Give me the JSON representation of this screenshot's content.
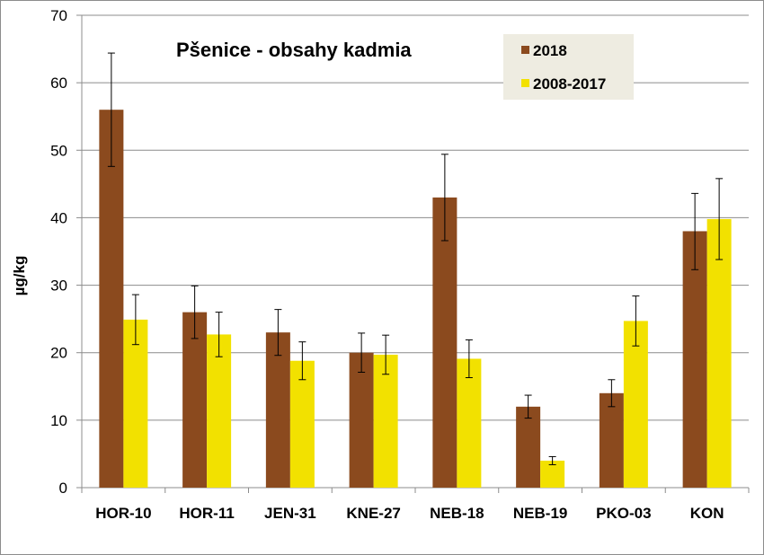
{
  "chart_data": {
    "type": "bar",
    "title": "Pšenice - obsahy kadmia",
    "xlabel": "",
    "ylabel": "µg/kg",
    "ylim": [
      0,
      70
    ],
    "yticks": [
      0,
      10,
      20,
      30,
      40,
      50,
      60,
      70
    ],
    "grid": true,
    "legend_position": "top-right",
    "categories": [
      "HOR-10",
      "HOR-11",
      "JEN-31",
      "KNE-27",
      "NEB-18",
      "NEB-19",
      "PKO-03",
      "KON"
    ],
    "series": [
      {
        "name": "2018",
        "color": "#8B4A1E",
        "values": [
          56,
          26,
          23,
          20,
          43,
          12,
          14,
          38
        ],
        "error_low": [
          47.6,
          22.1,
          19.6,
          17.1,
          36.6,
          10.3,
          12,
          32.3
        ],
        "error_high": [
          64.4,
          29.9,
          26.4,
          22.9,
          49.4,
          13.7,
          16,
          43.6
        ]
      },
      {
        "name": "2008-2017",
        "color": "#F2E100",
        "values": [
          24.9,
          22.7,
          18.8,
          19.7,
          19.1,
          4,
          24.7,
          39.8
        ],
        "error_low": [
          21.2,
          19.4,
          16,
          16.8,
          16.3,
          3.4,
          21,
          33.8
        ],
        "error_high": [
          28.6,
          26,
          21.6,
          22.6,
          21.9,
          4.6,
          28.4,
          45.8
        ]
      }
    ]
  }
}
